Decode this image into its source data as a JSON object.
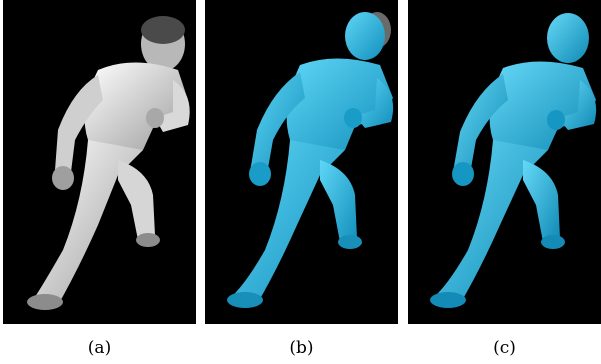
{
  "figure": {
    "panels": [
      {
        "label": "(a)",
        "content": "photo-grayscale"
      },
      {
        "label": "(b)",
        "content": "mesh-overlay"
      },
      {
        "label": "(c)",
        "content": "mesh-only"
      }
    ],
    "colors": {
      "background": "#000000",
      "mesh": "#2fb6e0",
      "photo": "#e6e6e6"
    }
  }
}
